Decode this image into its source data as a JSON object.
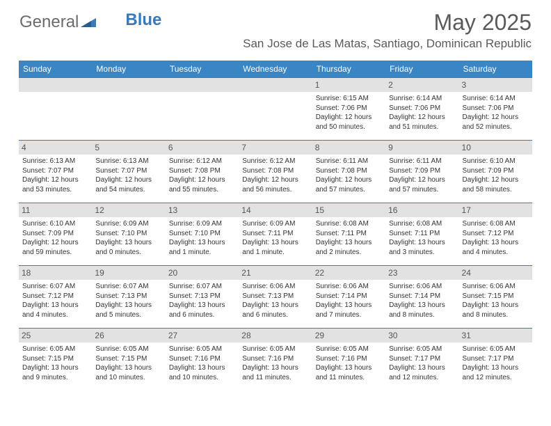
{
  "logo": {
    "text_general": "General",
    "text_blue": "Blue"
  },
  "title": "May 2025",
  "location": "San Jose de Las Matas, Santiago, Dominican Republic",
  "colors": {
    "header_bg": "#3a85c4",
    "header_text": "#ffffff",
    "daynum_bg": "#e2e2e2",
    "border": "#3a7ab8",
    "title_color": "#5a5a5a",
    "body_text": "#333333"
  },
  "day_headers": [
    "Sunday",
    "Monday",
    "Tuesday",
    "Wednesday",
    "Thursday",
    "Friday",
    "Saturday"
  ],
  "weeks": [
    [
      {
        "n": "",
        "empty": true
      },
      {
        "n": "",
        "empty": true
      },
      {
        "n": "",
        "empty": true
      },
      {
        "n": "",
        "empty": true
      },
      {
        "n": "1",
        "sunrise": "Sunrise: 6:15 AM",
        "sunset": "Sunset: 7:06 PM",
        "daylight": "Daylight: 12 hours and 50 minutes."
      },
      {
        "n": "2",
        "sunrise": "Sunrise: 6:14 AM",
        "sunset": "Sunset: 7:06 PM",
        "daylight": "Daylight: 12 hours and 51 minutes."
      },
      {
        "n": "3",
        "sunrise": "Sunrise: 6:14 AM",
        "sunset": "Sunset: 7:06 PM",
        "daylight": "Daylight: 12 hours and 52 minutes."
      }
    ],
    [
      {
        "n": "4",
        "sunrise": "Sunrise: 6:13 AM",
        "sunset": "Sunset: 7:07 PM",
        "daylight": "Daylight: 12 hours and 53 minutes."
      },
      {
        "n": "5",
        "sunrise": "Sunrise: 6:13 AM",
        "sunset": "Sunset: 7:07 PM",
        "daylight": "Daylight: 12 hours and 54 minutes."
      },
      {
        "n": "6",
        "sunrise": "Sunrise: 6:12 AM",
        "sunset": "Sunset: 7:08 PM",
        "daylight": "Daylight: 12 hours and 55 minutes."
      },
      {
        "n": "7",
        "sunrise": "Sunrise: 6:12 AM",
        "sunset": "Sunset: 7:08 PM",
        "daylight": "Daylight: 12 hours and 56 minutes."
      },
      {
        "n": "8",
        "sunrise": "Sunrise: 6:11 AM",
        "sunset": "Sunset: 7:08 PM",
        "daylight": "Daylight: 12 hours and 57 minutes."
      },
      {
        "n": "9",
        "sunrise": "Sunrise: 6:11 AM",
        "sunset": "Sunset: 7:09 PM",
        "daylight": "Daylight: 12 hours and 57 minutes."
      },
      {
        "n": "10",
        "sunrise": "Sunrise: 6:10 AM",
        "sunset": "Sunset: 7:09 PM",
        "daylight": "Daylight: 12 hours and 58 minutes."
      }
    ],
    [
      {
        "n": "11",
        "sunrise": "Sunrise: 6:10 AM",
        "sunset": "Sunset: 7:09 PM",
        "daylight": "Daylight: 12 hours and 59 minutes."
      },
      {
        "n": "12",
        "sunrise": "Sunrise: 6:09 AM",
        "sunset": "Sunset: 7:10 PM",
        "daylight": "Daylight: 13 hours and 0 minutes."
      },
      {
        "n": "13",
        "sunrise": "Sunrise: 6:09 AM",
        "sunset": "Sunset: 7:10 PM",
        "daylight": "Daylight: 13 hours and 1 minute."
      },
      {
        "n": "14",
        "sunrise": "Sunrise: 6:09 AM",
        "sunset": "Sunset: 7:11 PM",
        "daylight": "Daylight: 13 hours and 1 minute."
      },
      {
        "n": "15",
        "sunrise": "Sunrise: 6:08 AM",
        "sunset": "Sunset: 7:11 PM",
        "daylight": "Daylight: 13 hours and 2 minutes."
      },
      {
        "n": "16",
        "sunrise": "Sunrise: 6:08 AM",
        "sunset": "Sunset: 7:11 PM",
        "daylight": "Daylight: 13 hours and 3 minutes."
      },
      {
        "n": "17",
        "sunrise": "Sunrise: 6:08 AM",
        "sunset": "Sunset: 7:12 PM",
        "daylight": "Daylight: 13 hours and 4 minutes."
      }
    ],
    [
      {
        "n": "18",
        "sunrise": "Sunrise: 6:07 AM",
        "sunset": "Sunset: 7:12 PM",
        "daylight": "Daylight: 13 hours and 4 minutes."
      },
      {
        "n": "19",
        "sunrise": "Sunrise: 6:07 AM",
        "sunset": "Sunset: 7:13 PM",
        "daylight": "Daylight: 13 hours and 5 minutes."
      },
      {
        "n": "20",
        "sunrise": "Sunrise: 6:07 AM",
        "sunset": "Sunset: 7:13 PM",
        "daylight": "Daylight: 13 hours and 6 minutes."
      },
      {
        "n": "21",
        "sunrise": "Sunrise: 6:06 AM",
        "sunset": "Sunset: 7:13 PM",
        "daylight": "Daylight: 13 hours and 6 minutes."
      },
      {
        "n": "22",
        "sunrise": "Sunrise: 6:06 AM",
        "sunset": "Sunset: 7:14 PM",
        "daylight": "Daylight: 13 hours and 7 minutes."
      },
      {
        "n": "23",
        "sunrise": "Sunrise: 6:06 AM",
        "sunset": "Sunset: 7:14 PM",
        "daylight": "Daylight: 13 hours and 8 minutes."
      },
      {
        "n": "24",
        "sunrise": "Sunrise: 6:06 AM",
        "sunset": "Sunset: 7:15 PM",
        "daylight": "Daylight: 13 hours and 8 minutes."
      }
    ],
    [
      {
        "n": "25",
        "sunrise": "Sunrise: 6:05 AM",
        "sunset": "Sunset: 7:15 PM",
        "daylight": "Daylight: 13 hours and 9 minutes."
      },
      {
        "n": "26",
        "sunrise": "Sunrise: 6:05 AM",
        "sunset": "Sunset: 7:15 PM",
        "daylight": "Daylight: 13 hours and 10 minutes."
      },
      {
        "n": "27",
        "sunrise": "Sunrise: 6:05 AM",
        "sunset": "Sunset: 7:16 PM",
        "daylight": "Daylight: 13 hours and 10 minutes."
      },
      {
        "n": "28",
        "sunrise": "Sunrise: 6:05 AM",
        "sunset": "Sunset: 7:16 PM",
        "daylight": "Daylight: 13 hours and 11 minutes."
      },
      {
        "n": "29",
        "sunrise": "Sunrise: 6:05 AM",
        "sunset": "Sunset: 7:16 PM",
        "daylight": "Daylight: 13 hours and 11 minutes."
      },
      {
        "n": "30",
        "sunrise": "Sunrise: 6:05 AM",
        "sunset": "Sunset: 7:17 PM",
        "daylight": "Daylight: 13 hours and 12 minutes."
      },
      {
        "n": "31",
        "sunrise": "Sunrise: 6:05 AM",
        "sunset": "Sunset: 7:17 PM",
        "daylight": "Daylight: 13 hours and 12 minutes."
      }
    ]
  ]
}
